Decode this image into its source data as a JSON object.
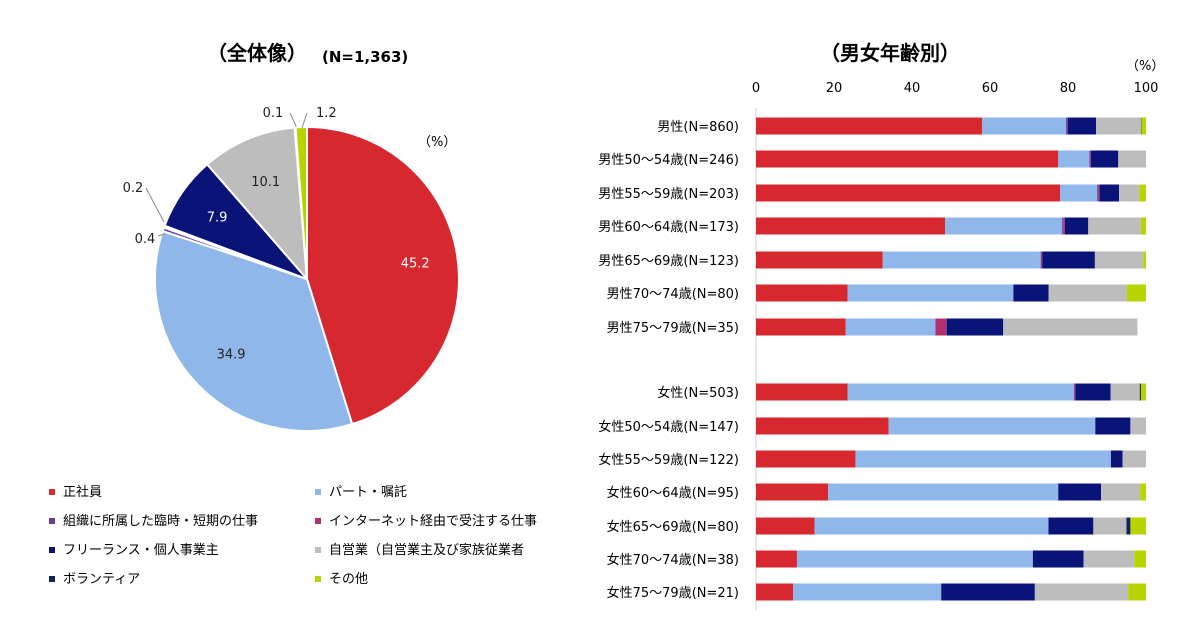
{
  "left": {
    "title": "（全体像）",
    "n_label": "(N=1,363)",
    "unit": "（%）"
  },
  "right": {
    "title": "（男女年齢別）",
    "unit": "（%）"
  },
  "colors": {
    "正社員": "#d7282f",
    "パート・嘱託": "#8fb7ea",
    "組織に所属した臨時・短期の仕事": "#6a3d9a",
    "インターネット経由で受注する仕事": "#b03070",
    "フリーランス・個人事業主": "#0a1478",
    "自営業（自営業主及び家族従業者": "#bdbdbd",
    "ボランティア": "#0e2260",
    "その他": "#b8d400"
  },
  "legend": [
    "正社員",
    "パート・嘱託",
    "組織に所属した臨時・短期の仕事",
    "インターネット経由で受注する仕事",
    "フリーランス・個人事業主",
    "自営業（自営業主及び家族従業者",
    "ボランティア",
    "その他"
  ],
  "chart_data": [
    {
      "type": "pie",
      "title": "（全体像）",
      "subtitle": "(N=1,363)",
      "unit": "（%）",
      "slices": [
        {
          "name": "正社員",
          "value": 45.2,
          "label": "45.2"
        },
        {
          "name": "パート・嘱託",
          "value": 34.9,
          "label": "34.9"
        },
        {
          "name": "組織に所属した臨時・短期の仕事",
          "value": 0.4,
          "label": "0.4"
        },
        {
          "name": "インターネット経由で受注する仕事",
          "value": 0.2,
          "label": "0.2"
        },
        {
          "name": "フリーランス・個人事業主",
          "value": 7.9,
          "label": "7.9"
        },
        {
          "name": "自営業（自営業主及び家族従業者",
          "value": 10.1,
          "label": "10.1"
        },
        {
          "name": "ボランティア",
          "value": 0.1,
          "label": "0.1"
        },
        {
          "name": "その他",
          "value": 1.2,
          "label": "1.2"
        }
      ]
    },
    {
      "type": "bar",
      "orientation": "horizontal",
      "stacked": true,
      "title": "（男女年齢別）",
      "unit": "（%）",
      "xlim": [
        0,
        100
      ],
      "xticks": [
        0,
        20,
        40,
        60,
        80,
        100
      ],
      "categories": [
        "男性(N=860)",
        "男性50～54歳(N=246)",
        "男性55～59歳(N=203)",
        "男性60～64歳(N=173)",
        "男性65～69歳(N=123)",
        "男性70～74歳(N=80)",
        "男性75～79歳(N=35)",
        "女性(N=503)",
        "女性50～54歳(N=147)",
        "女性55～59歳(N=122)",
        "女性60～64歳(N=95)",
        "女性65～69歳(N=80)",
        "女性70～74歳(N=38)",
        "女性75～79歳(N=21)"
      ],
      "series": [
        {
          "name": "正社員",
          "values": [
            58,
            77.5,
            78,
            48.5,
            32.5,
            23.5,
            23,
            23.5,
            34,
            25.5,
            18.5,
            15,
            10.5,
            9.5
          ]
        },
        {
          "name": "パート・嘱託",
          "values": [
            21.5,
            8,
            9.5,
            30,
            40.5,
            42.5,
            23,
            58,
            53,
            65.5,
            59,
            60,
            60.5,
            38
          ]
        },
        {
          "name": "組織に所属した臨時・短期の仕事",
          "values": [
            0.3,
            0.3,
            0.3,
            0.3,
            0.2,
            0,
            0,
            0.2,
            0,
            0,
            0,
            0,
            0,
            0
          ]
        },
        {
          "name": "インターネット経由で受注する仕事",
          "values": [
            0.1,
            0.1,
            0.3,
            0.4,
            0.2,
            0,
            2.9,
            0.2,
            0,
            0,
            0,
            0,
            0,
            0
          ]
        },
        {
          "name": "フリーランス・個人事業主",
          "values": [
            7.3,
            7,
            5,
            6,
            13.5,
            9,
            14.5,
            9,
            9,
            3,
            11,
            11.5,
            13,
            24
          ]
        },
        {
          "name": "自営業（自営業主及び家族従業者",
          "values": [
            11.5,
            7.1,
            5.2,
            13.5,
            12.4,
            20.1,
            34.4,
            7.5,
            4,
            6,
            10,
            8.5,
            13,
            24
          ]
        },
        {
          "name": "ボランティア",
          "values": [
            0.1,
            0,
            0,
            0,
            0,
            0,
            0,
            0.3,
            0,
            0,
            0,
            1,
            0,
            0
          ]
        },
        {
          "name": "その他",
          "values": [
            1.2,
            0,
            1.7,
            1.3,
            0.7,
            4.9,
            0,
            1.3,
            0,
            0,
            1.5,
            4,
            3,
            4.5
          ]
        }
      ]
    }
  ]
}
